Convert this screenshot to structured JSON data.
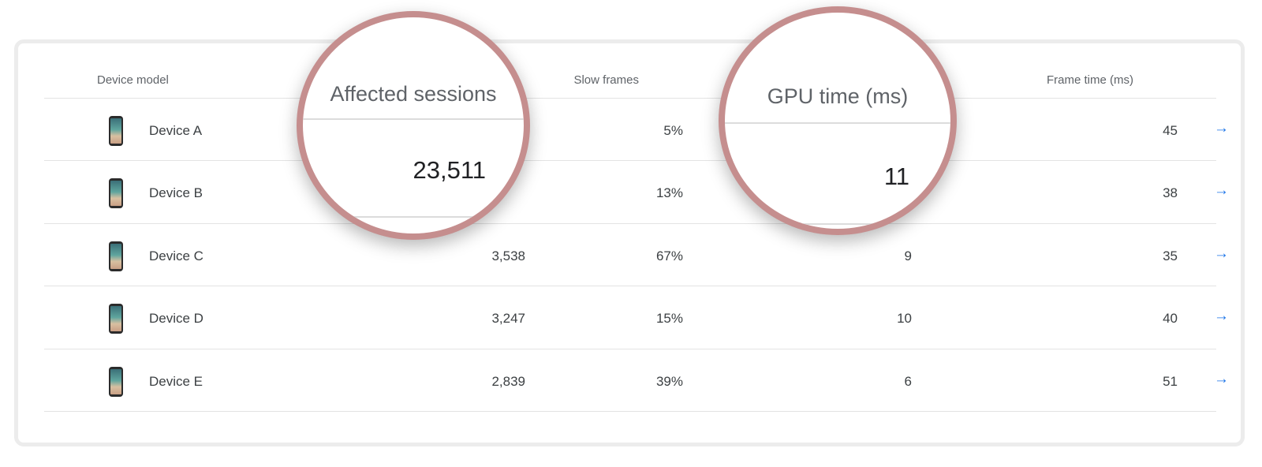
{
  "table": {
    "headers": {
      "device_model": "Device model",
      "slow_frames": "Slow frames",
      "frame_time": "Frame time (ms)"
    },
    "rows": [
      {
        "device": "Device A",
        "sessions": "",
        "slow_frames": "5%",
        "gpu_time": "",
        "frame_time": "45",
        "arrow": "→"
      },
      {
        "device": "Device B",
        "sessions": "",
        "slow_frames": "13%",
        "gpu_time": "",
        "frame_time": "38",
        "arrow": "→"
      },
      {
        "device": "Device C",
        "sessions": "3,538",
        "slow_frames": "67%",
        "gpu_time": "9",
        "frame_time": "35",
        "arrow": "→"
      },
      {
        "device": "Device D",
        "sessions": "3,247",
        "slow_frames": "15%",
        "gpu_time": "10",
        "frame_time": "40",
        "arrow": "→"
      },
      {
        "device": "Device E",
        "sessions": "2,839",
        "slow_frames": "39%",
        "gpu_time": "6",
        "frame_time": "51",
        "arrow": "→"
      }
    ]
  },
  "magnifiers": {
    "affected_sessions": {
      "title": "Affected sessions",
      "value": "23,511"
    },
    "gpu_time": {
      "title": "GPU time (ms)",
      "value": "11"
    }
  },
  "icons": {
    "device": "phone-icon",
    "row_action": "arrow-right-icon"
  },
  "colors": {
    "accent": "#1a73e8",
    "lens_ring": "#c58e8e",
    "divider": "#e3e3e3"
  }
}
